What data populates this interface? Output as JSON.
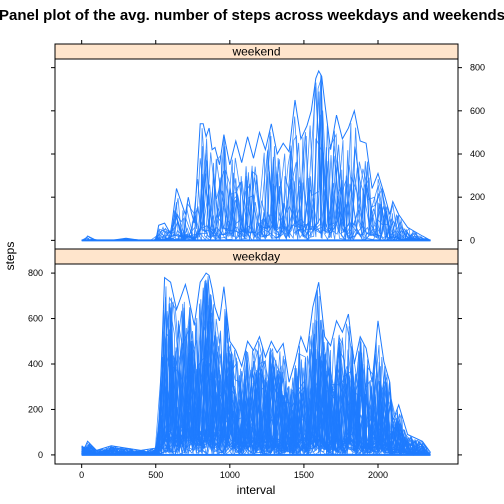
{
  "chart_data": {
    "type": "line",
    "title": "Panel plot of the avg. number of steps across weekdays and weekends",
    "xlabel": "interval",
    "ylabel": "steps",
    "xlim": [
      -180,
      2540
    ],
    "ylim": [
      -40,
      840
    ],
    "x_ticks": [
      0,
      500,
      1000,
      1500,
      2000
    ],
    "x_tick_labels": [
      "0",
      "500",
      "1000",
      "1500",
      "2000"
    ],
    "y_ticks": [
      0,
      200,
      400,
      600,
      800
    ],
    "y_tick_labels": [
      "0",
      "200",
      "400",
      "600",
      "800"
    ],
    "grid": false,
    "legend": "none",
    "line_color": "#1e7bff",
    "strip_color": "#ffe5cc",
    "panels": [
      {
        "name": "weekend",
        "y_axis_side": "right",
        "series": [
          {
            "x": [
              0,
              20,
              40,
              100,
              200,
              300,
              400,
              500,
              520,
              560,
              600,
              640,
              700,
              720,
              740,
              760,
              800,
              820,
              840,
              860,
              880,
              900,
              930,
              960,
              1000,
              1040,
              1080,
              1120,
              1160,
              1200,
              1240,
              1280,
              1320,
              1360,
              1400,
              1440,
              1480,
              1520,
              1550,
              1580,
              1600,
              1620,
              1640,
              1680,
              1720,
              1760,
              1800,
              1840,
              1880,
              1920,
              1960,
              2000,
              2040,
              2080,
              2100,
              2140,
              2200,
              2300,
              2355
            ],
            "values": [
              0,
              0,
              20,
              0,
              0,
              10,
              0,
              0,
              70,
              80,
              30,
              240,
              120,
              200,
              130,
              80,
              540,
              540,
              480,
              520,
              420,
              430,
              350,
              490,
              350,
              460,
              360,
              480,
              380,
              500,
              420,
              540,
              400,
              450,
              410,
              650,
              470,
              530,
              600,
              750,
              785,
              760,
              640,
              420,
              580,
              470,
              520,
              600,
              460,
              450,
              240,
              310,
              220,
              120,
              180,
              120,
              60,
              20,
              0
            ]
          }
        ]
      },
      {
        "name": "weekday",
        "y_axis_side": "left",
        "series": [
          {
            "x": [
              0,
              20,
              40,
              100,
              200,
              300,
              400,
              500,
              520,
              560,
              600,
              640,
              700,
              720,
              760,
              800,
              820,
              840,
              860,
              880,
              900,
              930,
              960,
              1000,
              1040,
              1080,
              1120,
              1160,
              1200,
              1240,
              1280,
              1320,
              1360,
              1400,
              1440,
              1480,
              1520,
              1560,
              1600,
              1640,
              1680,
              1720,
              1760,
              1800,
              1840,
              1880,
              1920,
              1960,
              2000,
              2040,
              2080,
              2100,
              2140,
              2200,
              2300,
              2355
            ],
            "values": [
              40,
              30,
              60,
              20,
              40,
              30,
              20,
              30,
              100,
              780,
              760,
              640,
              750,
              700,
              570,
              760,
              780,
              800,
              790,
              730,
              650,
              590,
              740,
              500,
              460,
              390,
              500,
              460,
              520,
              430,
              500,
              450,
              490,
              320,
              410,
              520,
              450,
              650,
              760,
              520,
              480,
              590,
              540,
              620,
              400,
              520,
              470,
              320,
              590,
              410,
              320,
              150,
              220,
              90,
              60,
              10
            ]
          }
        ]
      }
    ]
  }
}
